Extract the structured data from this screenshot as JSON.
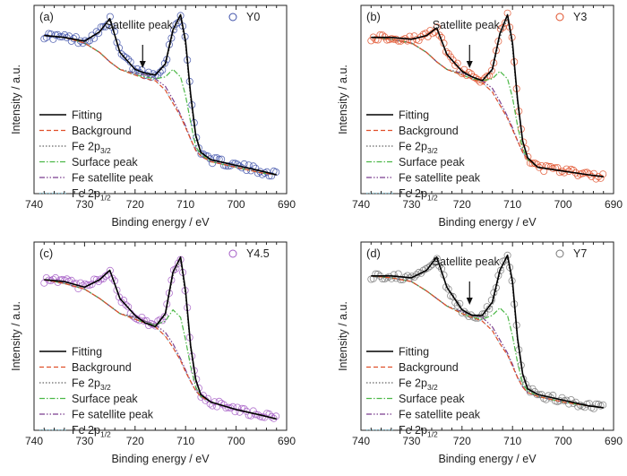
{
  "figure": {
    "xlabel": "Binding energy / eV",
    "ylabel": "Intensity / a.u.",
    "xticks": [
      "740",
      "730",
      "720",
      "710",
      "700",
      "690"
    ],
    "legend_labels": {
      "fitting": "Fitting",
      "background": "Background",
      "fe32_pre": "Fe 2p",
      "fe32_sub": "3/2",
      "surface": "Surface peak",
      "fesat": "Fe satellite peak",
      "fe12_pre": "Fe 2p",
      "fe12_sub": "1/2"
    },
    "annotation": "Satellite peak"
  },
  "colors": {
    "fitting": "#000000",
    "background": "#e0502a",
    "fe32": "#666666",
    "surface": "#4cb847",
    "fesat": "#7b3f8f",
    "fe12": "#8ecde0"
  },
  "chart_data": [
    {
      "type": "line",
      "panel_label": "(a)",
      "sample": "Y0",
      "marker_color": "#3c4fa8",
      "satellite_annotation": true,
      "xlabel": "Binding energy / eV",
      "ylabel": "Intensity / a.u.",
      "xlim": [
        740,
        690
      ],
      "ylim": [
        0,
        1
      ],
      "x": [
        738,
        734,
        730,
        727,
        725,
        723,
        720,
        718,
        716,
        714,
        712.5,
        711,
        710,
        709,
        708,
        707,
        705,
        700,
        695,
        692
      ],
      "series": [
        {
          "name": "Fitting",
          "values": [
            0.84,
            0.83,
            0.81,
            0.86,
            0.93,
            0.75,
            0.66,
            0.64,
            0.63,
            0.69,
            0.87,
            0.95,
            0.81,
            0.53,
            0.31,
            0.22,
            0.18,
            0.15,
            0.12,
            0.1
          ]
        },
        {
          "name": "Background",
          "values": [
            0.84,
            0.83,
            0.8,
            0.75,
            0.7,
            0.66,
            0.63,
            0.61,
            0.6,
            0.55,
            0.48,
            0.41,
            0.35,
            0.29,
            0.23,
            0.2,
            0.17,
            0.14,
            0.11,
            0.1
          ]
        },
        {
          "name": "Fe 2p3/2",
          "values": [
            0.84,
            0.83,
            0.8,
            0.75,
            0.7,
            0.66,
            0.64,
            0.63,
            0.63,
            0.68,
            0.85,
            0.93,
            0.78,
            0.5,
            0.3,
            0.22,
            0.18,
            0.15,
            0.12,
            0.1
          ]
        },
        {
          "name": "Surface peak",
          "values": [
            0.84,
            0.83,
            0.8,
            0.75,
            0.7,
            0.66,
            0.63,
            0.62,
            0.61,
            0.62,
            0.66,
            0.62,
            0.52,
            0.38,
            0.25,
            0.21,
            0.17,
            0.14,
            0.11,
            0.1
          ]
        },
        {
          "name": "Fe satellite peak",
          "values": [
            0.84,
            0.83,
            0.8,
            0.75,
            0.7,
            0.66,
            0.64,
            0.63,
            0.61,
            0.57,
            0.5,
            0.42,
            0.36,
            0.29,
            0.23,
            0.2,
            0.17,
            0.14,
            0.11,
            0.1
          ]
        },
        {
          "name": "Fe 2p1/2",
          "values": [
            0.84,
            0.83,
            0.81,
            0.86,
            0.93,
            0.75,
            0.66,
            0.62,
            0.6,
            0.55,
            0.48,
            0.41,
            0.35,
            0.29,
            0.23,
            0.2,
            0.17,
            0.14,
            0.11,
            0.1
          ]
        }
      ]
    },
    {
      "type": "line",
      "panel_label": "(b)",
      "sample": "Y3",
      "marker_color": "#e0502a",
      "satellite_annotation": true,
      "xlabel": "Binding energy / eV",
      "ylabel": "Intensity / a.u.",
      "xlim": [
        740,
        690
      ],
      "ylim": [
        0,
        1
      ],
      "x": [
        738,
        734,
        730,
        727,
        725,
        723,
        720,
        718,
        716,
        714,
        712.5,
        711,
        710,
        709,
        708,
        707,
        705,
        700,
        695,
        692
      ],
      "series": [
        {
          "name": "Fitting",
          "values": [
            0.83,
            0.83,
            0.82,
            0.84,
            0.88,
            0.74,
            0.65,
            0.62,
            0.6,
            0.66,
            0.85,
            0.95,
            0.8,
            0.5,
            0.28,
            0.19,
            0.14,
            0.12,
            0.1,
            0.09
          ]
        },
        {
          "name": "Background",
          "values": [
            0.83,
            0.82,
            0.8,
            0.75,
            0.7,
            0.66,
            0.63,
            0.61,
            0.59,
            0.54,
            0.47,
            0.4,
            0.34,
            0.28,
            0.22,
            0.18,
            0.14,
            0.12,
            0.1,
            0.09
          ]
        },
        {
          "name": "Fe 2p3/2",
          "values": [
            0.83,
            0.82,
            0.8,
            0.75,
            0.7,
            0.66,
            0.64,
            0.62,
            0.6,
            0.65,
            0.83,
            0.93,
            0.77,
            0.48,
            0.27,
            0.19,
            0.14,
            0.12,
            0.1,
            0.09
          ]
        },
        {
          "name": "Surface peak",
          "values": [
            0.83,
            0.82,
            0.8,
            0.75,
            0.7,
            0.66,
            0.63,
            0.61,
            0.6,
            0.61,
            0.65,
            0.61,
            0.51,
            0.36,
            0.24,
            0.18,
            0.14,
            0.12,
            0.1,
            0.09
          ]
        },
        {
          "name": "Fe satellite peak",
          "values": [
            0.83,
            0.82,
            0.8,
            0.75,
            0.7,
            0.66,
            0.64,
            0.62,
            0.6,
            0.56,
            0.49,
            0.41,
            0.35,
            0.28,
            0.22,
            0.18,
            0.14,
            0.12,
            0.1,
            0.09
          ]
        },
        {
          "name": "Fe 2p1/2",
          "values": [
            0.83,
            0.83,
            0.82,
            0.84,
            0.88,
            0.74,
            0.65,
            0.61,
            0.59,
            0.54,
            0.47,
            0.4,
            0.34,
            0.28,
            0.22,
            0.18,
            0.14,
            0.12,
            0.1,
            0.09
          ]
        }
      ]
    },
    {
      "type": "line",
      "panel_label": "(c)",
      "sample": "Y4.5",
      "marker_color": "#a45cc6",
      "satellite_annotation": false,
      "xlabel": "Binding energy / eV",
      "ylabel": "Intensity / a.u.",
      "xlim": [
        740,
        690
      ],
      "ylim": [
        0,
        1
      ],
      "x": [
        738,
        734,
        730,
        727,
        725,
        723,
        720,
        718,
        716,
        714,
        712.5,
        711,
        710,
        709,
        708,
        707,
        705,
        700,
        695,
        692
      ],
      "series": [
        {
          "name": "Fitting",
          "values": [
            0.8,
            0.79,
            0.76,
            0.8,
            0.85,
            0.7,
            0.61,
            0.57,
            0.55,
            0.62,
            0.84,
            0.92,
            0.74,
            0.45,
            0.27,
            0.19,
            0.15,
            0.11,
            0.08,
            0.06
          ]
        },
        {
          "name": "Background",
          "values": [
            0.8,
            0.78,
            0.75,
            0.7,
            0.66,
            0.62,
            0.59,
            0.57,
            0.55,
            0.5,
            0.44,
            0.37,
            0.31,
            0.26,
            0.21,
            0.18,
            0.15,
            0.11,
            0.08,
            0.06
          ]
        },
        {
          "name": "Fe 2p3/2",
          "values": [
            0.8,
            0.78,
            0.75,
            0.7,
            0.66,
            0.62,
            0.6,
            0.58,
            0.56,
            0.61,
            0.82,
            0.9,
            0.71,
            0.43,
            0.26,
            0.19,
            0.15,
            0.11,
            0.08,
            0.06
          ]
        },
        {
          "name": "Surface peak",
          "values": [
            0.8,
            0.78,
            0.75,
            0.7,
            0.66,
            0.62,
            0.59,
            0.57,
            0.56,
            0.58,
            0.64,
            0.6,
            0.48,
            0.34,
            0.23,
            0.18,
            0.15,
            0.11,
            0.08,
            0.06
          ]
        },
        {
          "name": "Fe satellite peak",
          "values": [
            0.8,
            0.78,
            0.75,
            0.7,
            0.66,
            0.62,
            0.6,
            0.58,
            0.56,
            0.52,
            0.46,
            0.38,
            0.32,
            0.26,
            0.21,
            0.18,
            0.15,
            0.11,
            0.08,
            0.06
          ]
        },
        {
          "name": "Fe 2p1/2",
          "values": [
            0.8,
            0.79,
            0.76,
            0.8,
            0.85,
            0.7,
            0.61,
            0.57,
            0.55,
            0.5,
            0.44,
            0.37,
            0.31,
            0.26,
            0.21,
            0.18,
            0.15,
            0.11,
            0.08,
            0.06
          ]
        }
      ]
    },
    {
      "type": "line",
      "panel_label": "(d)",
      "sample": "Y7",
      "marker_color": "#777777",
      "satellite_annotation": true,
      "xlabel": "Binding energy / eV",
      "ylabel": "Intensity / a.u.",
      "xlim": [
        740,
        690
      ],
      "ylim": [
        0,
        1
      ],
      "x": [
        738,
        734,
        730,
        727,
        725,
        723,
        720,
        718,
        716,
        714,
        712.5,
        711,
        710,
        709,
        708,
        707,
        705,
        700,
        695,
        692
      ],
      "series": [
        {
          "name": "Fitting",
          "values": [
            0.82,
            0.82,
            0.81,
            0.85,
            0.92,
            0.76,
            0.64,
            0.61,
            0.61,
            0.68,
            0.85,
            0.93,
            0.79,
            0.49,
            0.3,
            0.22,
            0.19,
            0.16,
            0.13,
            0.12
          ]
        },
        {
          "name": "Background",
          "values": [
            0.82,
            0.81,
            0.79,
            0.74,
            0.7,
            0.66,
            0.62,
            0.6,
            0.58,
            0.53,
            0.46,
            0.4,
            0.34,
            0.28,
            0.23,
            0.2,
            0.18,
            0.15,
            0.13,
            0.12
          ]
        },
        {
          "name": "Fe 2p3/2",
          "values": [
            0.82,
            0.81,
            0.79,
            0.74,
            0.7,
            0.66,
            0.63,
            0.61,
            0.6,
            0.66,
            0.83,
            0.91,
            0.76,
            0.47,
            0.29,
            0.22,
            0.19,
            0.16,
            0.13,
            0.12
          ]
        },
        {
          "name": "Surface peak",
          "values": [
            0.82,
            0.81,
            0.79,
            0.74,
            0.7,
            0.66,
            0.62,
            0.6,
            0.59,
            0.61,
            0.65,
            0.61,
            0.5,
            0.36,
            0.25,
            0.21,
            0.18,
            0.15,
            0.13,
            0.12
          ]
        },
        {
          "name": "Fe satellite peak",
          "values": [
            0.82,
            0.81,
            0.79,
            0.74,
            0.7,
            0.66,
            0.63,
            0.61,
            0.6,
            0.55,
            0.48,
            0.41,
            0.35,
            0.28,
            0.23,
            0.2,
            0.18,
            0.15,
            0.13,
            0.12
          ]
        },
        {
          "name": "Fe 2p1/2",
          "values": [
            0.82,
            0.82,
            0.81,
            0.85,
            0.92,
            0.76,
            0.64,
            0.6,
            0.58,
            0.53,
            0.46,
            0.4,
            0.34,
            0.28,
            0.23,
            0.2,
            0.18,
            0.15,
            0.13,
            0.12
          ]
        }
      ]
    }
  ]
}
